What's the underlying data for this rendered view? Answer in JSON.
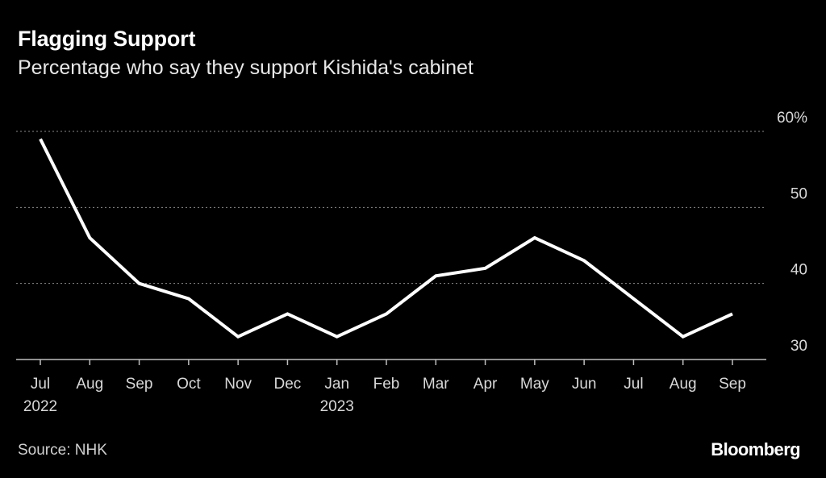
{
  "header": {
    "title": "Flagging Support",
    "subtitle": "Percentage who say they support Kishida's cabinet"
  },
  "footer": {
    "source": "Source: NHK",
    "brand": "Bloomberg"
  },
  "colors": {
    "background": "#000000",
    "line": "#ffffff",
    "grid": "#8a8a8a",
    "text": "#d8d8d8"
  },
  "chart_data": {
    "type": "line",
    "title": "Flagging Support",
    "subtitle": "Percentage who say they support Kishida's cabinet",
    "x": [
      "Jul 2022",
      "Aug 2022",
      "Sep 2022",
      "Oct 2022",
      "Nov 2022",
      "Dec 2022",
      "Jan 2023",
      "Feb 2023",
      "Mar 2023",
      "Apr 2023",
      "May 2023",
      "Jun 2023",
      "Jul 2023",
      "Aug 2023",
      "Sep 2023"
    ],
    "x_tick_labels": [
      {
        "month": "Jul",
        "year": "2022"
      },
      {
        "month": "Aug",
        "year": ""
      },
      {
        "month": "Sep",
        "year": ""
      },
      {
        "month": "Oct",
        "year": ""
      },
      {
        "month": "Nov",
        "year": ""
      },
      {
        "month": "Dec",
        "year": ""
      },
      {
        "month": "Jan",
        "year": "2023"
      },
      {
        "month": "Feb",
        "year": ""
      },
      {
        "month": "Mar",
        "year": ""
      },
      {
        "month": "Apr",
        "year": ""
      },
      {
        "month": "May",
        "year": ""
      },
      {
        "month": "Jun",
        "year": ""
      },
      {
        "month": "Jul",
        "year": ""
      },
      {
        "month": "Aug",
        "year": ""
      },
      {
        "month": "Sep",
        "year": ""
      }
    ],
    "series": [
      {
        "values": [
          59,
          46,
          40,
          38,
          33,
          36,
          33,
          36,
          41,
          42,
          46,
          43,
          38,
          33,
          36
        ]
      }
    ],
    "y_ticks": [
      30,
      40,
      50,
      60
    ],
    "y_tick_labels": [
      "30",
      "40",
      "50",
      "60%"
    ],
    "ylim": [
      30,
      60
    ],
    "axis_side": "right",
    "grid": true,
    "xlabel": "",
    "ylabel": ""
  }
}
